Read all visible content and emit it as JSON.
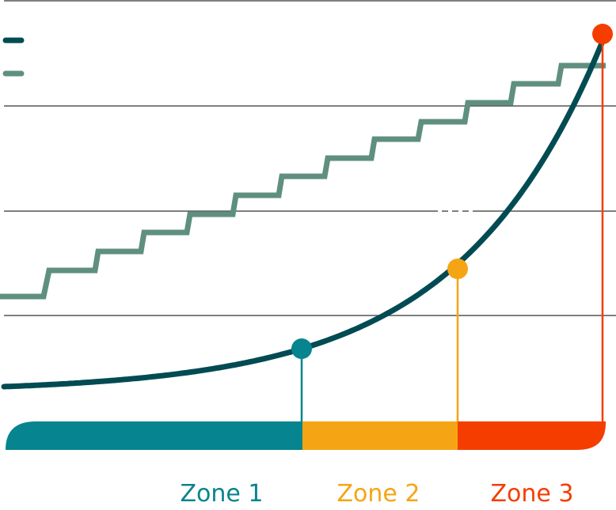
{
  "colors": {
    "curve": "#024b52",
    "steps": "#5f8f7f",
    "zone1": "#06848f",
    "zone2": "#f5a514",
    "zone3": "#f53d00",
    "grid": "#555555"
  },
  "zones": [
    {
      "label": "Zone 1"
    },
    {
      "label": "Zone 2"
    },
    {
      "label": "Zone 3"
    }
  ]
}
